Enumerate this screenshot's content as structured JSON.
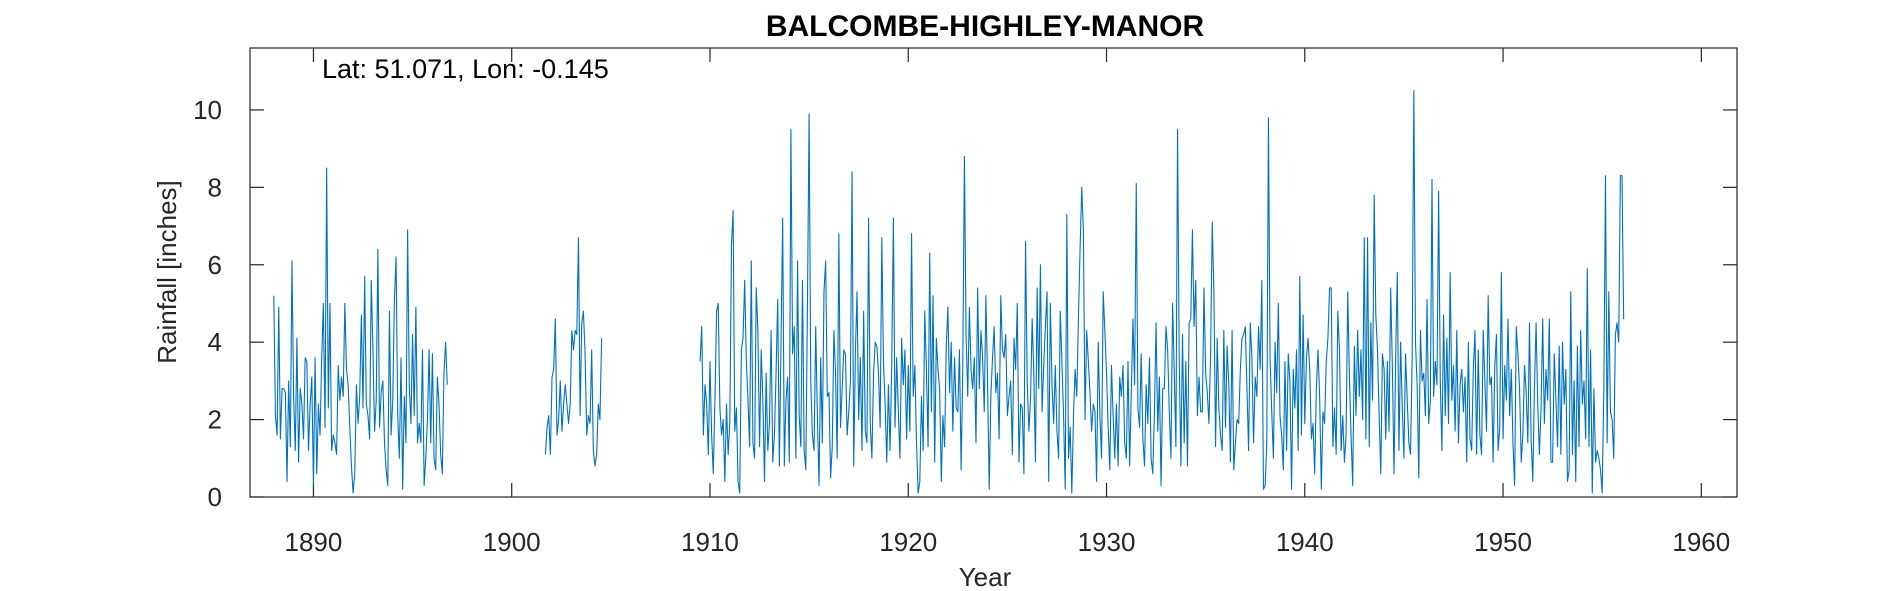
{
  "chart_data": {
    "type": "line",
    "title": "BALCOMBE-HIGHLEY-MANOR",
    "annotation": "Lat: 51.071, Lon: -0.145",
    "xlabel": "Year",
    "ylabel": "Rainfall [inches]",
    "xlim": [
      1886.8,
      1961.8
    ],
    "ylim": [
      0,
      11.6
    ],
    "xticks": [
      1890,
      1900,
      1910,
      1920,
      1930,
      1940,
      1950,
      1960
    ],
    "yticks": [
      0,
      2,
      4,
      6,
      8,
      10
    ],
    "grid": false,
    "color": "#0072bd",
    "series": [
      {
        "name": "",
        "segments": [
          {
            "start": 1888.0,
            "step": 0.0833333,
            "values": [
              5.2,
              2.1,
              1.6,
              4.9,
              1.5,
              2.8,
              2.8,
              2.7,
              0.4,
              3.0,
              1.3,
              6.1,
              2.6,
              1.2,
              4.1,
              0.9,
              2.8,
              2.4,
              1.5,
              3.6,
              3.5,
              1.2,
              2.4,
              3.1,
              0.3,
              3.6,
              0.6,
              2.4,
              1.6,
              3.6,
              5.0,
              1.8,
              8.5,
              2.3,
              5.0,
              1.2,
              1.6,
              1.4,
              1.1,
              3.4,
              2.5,
              3.1,
              2.6,
              5.0,
              3.3,
              2.9,
              1.8,
              0.8,
              0.1,
              0.6,
              2.9,
              1.9,
              2.6,
              4.7,
              2.3,
              5.7,
              2.4,
              2.1,
              1.5,
              5.6,
              3.8,
              1.7,
              2.5,
              6.4,
              1.8,
              2.7,
              3.0,
              1.4,
              0.7,
              0.3,
              4.8,
              1.6,
              2.5,
              5.1,
              6.2,
              2.1,
              1.0,
              3.6,
              0.2,
              2.6,
              1.4,
              6.9,
              2.9,
              1.9,
              4.2,
              2.1,
              4.9,
              1.4,
              1.9,
              1.4,
              3.8,
              0.3,
              1.0,
              2.0,
              3.8,
              1.4,
              3.7,
              1.0,
              0.7,
              3.1,
              2.4,
              1.1,
              0.6,
              3.2,
              4.0,
              2.9
            ]
          },
          {
            "start": 1901.7,
            "step": 0.0833333,
            "values": [
              1.1,
              1.8,
              2.1,
              1.1,
              3.1,
              3.3,
              4.6,
              1.6,
              2.0,
              3.0,
              1.7,
              2.4,
              2.9,
              2.4,
              1.9,
              2.4,
              4.3,
              3.8,
              4.3,
              4.2,
              6.7,
              2.1,
              4.5,
              4.8,
              3.7,
              1.6,
              2.1,
              1.9,
              3.8,
              1.2,
              0.8,
              1.1,
              2.4,
              2.0,
              4.1
            ]
          },
          {
            "start": 1909.5,
            "step": 0.0833333,
            "values": [
              3.5,
              4.4,
              1.6,
              2.9,
              2.4,
              1.1,
              3.5,
              1.6,
              0.6,
              2.5,
              4.8,
              5.0,
              2.3,
              1.6,
              2.0,
              0.4,
              2.4,
              1.1,
              1.9,
              6.5,
              7.4,
              1.7,
              2.3,
              0.4,
              0.1,
              3.8,
              4.1,
              5.6,
              3.5,
              2.5,
              1.3,
              6.1,
              1.4,
              1.0,
              5.4,
              4.3,
              1.3,
              3.8,
              2.5,
              0.4,
              3.2,
              1.2,
              1.9,
              4.3,
              0.9,
              1.6,
              3.2,
              5.1,
              0.8,
              4.0,
              7.2,
              0.8,
              2.5,
              3.1,
              0.9,
              9.5,
              3.7,
              4.4,
              1.0,
              6.1,
              2.1,
              1.3,
              5.6,
              1.2,
              0.7,
              5.0,
              9.9,
              3.0,
              1.6,
              1.2,
              4.4,
              2.1,
              0.3,
              3.6,
              1.4,
              5.3,
              6.1,
              2.6,
              2.7,
              0.5,
              1.3,
              4.3,
              3.2,
              1.0,
              6.8,
              1.8,
              2.8,
              3.8,
              3.7,
              1.6,
              2.2,
              3.0,
              8.4,
              0.8,
              3.7,
              5.3,
              2.0,
              3.6,
              1.2,
              4.8,
              1.7,
              1.4,
              7.2,
              1.9,
              1.0,
              3.2,
              4.0,
              3.9,
              3.2,
              1.8,
              6.7,
              3.5,
              2.4,
              0.9,
              2.9,
              1.2,
              3.4,
              7.2,
              1.8,
              3.6,
              2.2,
              1.0,
              4.1,
              2.9,
              3.8,
              1.5,
              3.4,
              1.7,
              6.8,
              2.6,
              3.4,
              1.4,
              0.1,
              0.4,
              2.6,
              1.2,
              4.8,
              3.3,
              1.3,
              6.3,
              2.2,
              5.2,
              0.9,
              4.1,
              3.3,
              2.8,
              0.4,
              2.1,
              1.3,
              3.9,
              4.9,
              2.7,
              4.0,
              1.7,
              3.6,
              2.3,
              2.2,
              3.8,
              0.7,
              3.3,
              8.8,
              4.2,
              2.6,
              4.9,
              3.3,
              2.8,
              3.6,
              1.4,
              5.4,
              2.8,
              4.3,
              3.6,
              2.2,
              5.2,
              3.0,
              0.2,
              2.6,
              3.6,
              4.4,
              2.7,
              3.2,
              1.5,
              5.2,
              3.8,
              3.6,
              4.2,
              2.1,
              2.6,
              3.0,
              1.1,
              4.1,
              3.3,
              5.0,
              0.9,
              2.4,
              2.3,
              0.6,
              6.6,
              3.0,
              1.7,
              2.5,
              4.6,
              3.2,
              0.9,
              5.4,
              2.8,
              6.0,
              2.2,
              3.4,
              4.4,
              5.3,
              0.4,
              5.0,
              2.9,
              1.9,
              3.4,
              1.7,
              1.0,
              4.8,
              3.5,
              2.1,
              0.2,
              7.3,
              1.0,
              1.8,
              0.1,
              2.1,
              3.3,
              2.6,
              4.6,
              6.4,
              8.0,
              6.9,
              2.0,
              4.3,
              3.5,
              2.7,
              1.7,
              2.4,
              2.2,
              0.4,
              4.0,
              2.1,
              1.0,
              5.3,
              4.3,
              3.2,
              1.8,
              0.7,
              3.4,
              2.1,
              1.0,
              2.4,
              0.8,
              3.1,
              2.6,
              3.4,
              1.4,
              1.0,
              3.5,
              0.8,
              2.7,
              4.6,
              2.9,
              8.1,
              2.3,
              1.8,
              3.7,
              1.5,
              0.8,
              2.9,
              1.9,
              3.6,
              1.0,
              0.6,
              2.2,
              4.5,
              1.7,
              3.1,
              0.3,
              2.8,
              2.8,
              4.4,
              3.8,
              2.2,
              1.0,
              5.0,
              3.2,
              1.3,
              9.5,
              3.6,
              0.8,
              4.2,
              1.4,
              3.5,
              0.8,
              4.5,
              4.6,
              6.9,
              4.4,
              5.6,
              2.1,
              3.1,
              2.2,
              2.2,
              5.4,
              3.2,
              2.7,
              1.9,
              3.7,
              7.1,
              5.3,
              1.3,
              4.1,
              2.3,
              1.6,
              1.2,
              4.3,
              1.8,
              3.9,
              2.9,
              0.9,
              4.3,
              0.7,
              1.4,
              2.0,
              1.9,
              3.3,
              4.1,
              4.2,
              4.4,
              2.8,
              1.2,
              4.5,
              3.6,
              1.4,
              3.1,
              2.6,
              4.4,
              3.3,
              5.6,
              0.2,
              0.3,
              1.4,
              9.8,
              3.6,
              2.2,
              1.0,
              4.0,
              2.7,
              5.0,
              2.1,
              1.6,
              0.7,
              3.5,
              1.2,
              3.7,
              3.0,
              0.2,
              3.3,
              2.3,
              3.8,
              1.2,
              5.7,
              1.6,
              4.7,
              1.9,
              3.6,
              4.1,
              3.3,
              1.5,
              1.9,
              0.6,
              2.8,
              3.8,
              2.6,
              0.2,
              2.2,
              1.9,
              3.5,
              4.1,
              5.4,
              5.4,
              1.3,
              2.3,
              1.1,
              4.8,
              3.8,
              1.2,
              2.1,
              0.9,
              1.6,
              5.3,
              3.1,
              1.6,
              0.3,
              3.9,
              2.1,
              4.3,
              2.6,
              3.8,
              2.0,
              6.7,
              1.5,
              6.7,
              1.3,
              4.5,
              2.5,
              7.8,
              4.7,
              3.8,
              2.1,
              0.6,
              3.7,
              3.3,
              1.5,
              3.5,
              1.7,
              5.4,
              3.4,
              0.6,
              3.6,
              5.8,
              1.2,
              4.0,
              2.3,
              1.0,
              3.7,
              2.5,
              1.4,
              1.1,
              3.6,
              10.5,
              4.0,
              2.9,
              0.5,
              4.3,
              3.0,
              3.2,
              2.1,
              5.1,
              1.9,
              2.5,
              8.2,
              2.6,
              3.5,
              2.9,
              7.9,
              3.0,
              1.2,
              4.7,
              2.1,
              4.1,
              1.9,
              5.8,
              2.5,
              3.4,
              1.7,
              4.3,
              1.4,
              2.9,
              3.3,
              2.2,
              3.1,
              0.9,
              4.0,
              1.5,
              1.2,
              3.3,
              4.3,
              1.1,
              3.8,
              1.6,
              1.1,
              4.3,
              3.0,
              1.7,
              5.2,
              2.9,
              3.1,
              0.9,
              3.4,
              4.2,
              1.2,
              1.8,
              5.8,
              1.5,
              3.4,
              2.5,
              4.6,
              2.1,
              3.3,
              1.4,
              0.3,
              4.4,
              3.7,
              2.8,
              0.9,
              1.6,
              3.4,
              2.7,
              1.4,
              4.5,
              1.5,
              0.4,
              2.8,
              4.5,
              2.4,
              1.1,
              2.3,
              4.6,
              1.9,
              3.3,
              2.5,
              4.6,
              0.9,
              0.9,
              3.7,
              2.5,
              1.3,
              3.9,
              1.1,
              4.0,
              2.4,
              3.3,
              0.4,
              0.7,
              5.3,
              1.1,
              3.0,
              0.4,
              3.9,
              1.3,
              4.3,
              2.4,
              3.0,
              1.5,
              5.9,
              1.3,
              3.8,
              0.1,
              2.8,
              0.9,
              1.2,
              1.0,
              0.7,
              0.1,
              2.8,
              8.3,
              1.4,
              5.3,
              2.2,
              2.0,
              1.0,
              4.2,
              4.5,
              4.0,
              8.3,
              8.3,
              4.6
            ]
          }
        ]
      }
    ]
  }
}
